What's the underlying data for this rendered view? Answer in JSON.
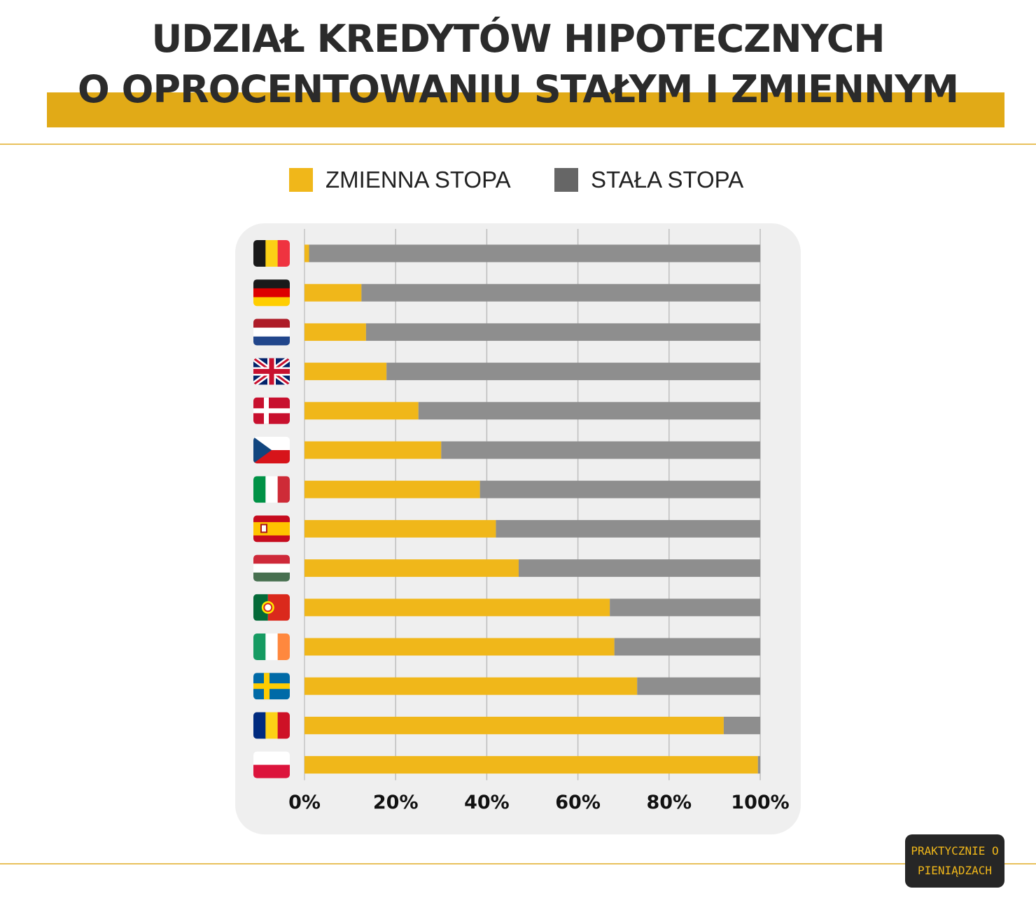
{
  "title": {
    "line1": "UDZIAŁ KREDYTÓW HIPOTECZNYCH",
    "line2": "O OPROCENTOWANIU STAŁYM I ZMIENNYM"
  },
  "legend": {
    "variable": "ZMIENNA STOPA",
    "fixed": "STAŁA STOPA"
  },
  "colors": {
    "variable": "#f0b71a",
    "fixed": "#8e8e8e",
    "fixed_legend": "#666666",
    "title_band": "#e1aa17",
    "panel": "#efefef",
    "grid": "#bdbdbd"
  },
  "logo": {
    "line1": "PRAKTYCZNIE O",
    "line2": "PIENIĄDZACH"
  },
  "chart_data": {
    "type": "bar",
    "orientation": "horizontal",
    "stacked": true,
    "categories": [
      "Belgium",
      "Germany",
      "Netherlands",
      "United Kingdom",
      "Denmark",
      "Czech Republic",
      "Italy",
      "Spain",
      "Hungary",
      "Portugal",
      "Ireland",
      "Sweden",
      "Romania",
      "Poland"
    ],
    "category_icons": [
      "flag-belgium",
      "flag-germany",
      "flag-netherlands",
      "flag-united-kingdom",
      "flag-denmark",
      "flag-czech-republic",
      "flag-italy",
      "flag-spain",
      "flag-hungary",
      "flag-portugal",
      "flag-ireland",
      "flag-sweden",
      "flag-romania",
      "flag-poland"
    ],
    "series": [
      {
        "name": "ZMIENNA STOPA",
        "values": [
          1,
          12.5,
          13.5,
          18,
          25,
          30,
          38.5,
          42,
          47,
          67,
          68,
          73,
          92,
          99.5
        ]
      },
      {
        "name": "STAŁA STOPA",
        "values": [
          99,
          87.5,
          86.5,
          82,
          75,
          70,
          61.5,
          58,
          53,
          33,
          32,
          27,
          8,
          0.5
        ]
      }
    ],
    "x_ticks": [
      "0%",
      "20%",
      "40%",
      "60%",
      "80%",
      "100%"
    ],
    "xlim": [
      0,
      100
    ],
    "grid": true,
    "legend_position": "top"
  }
}
